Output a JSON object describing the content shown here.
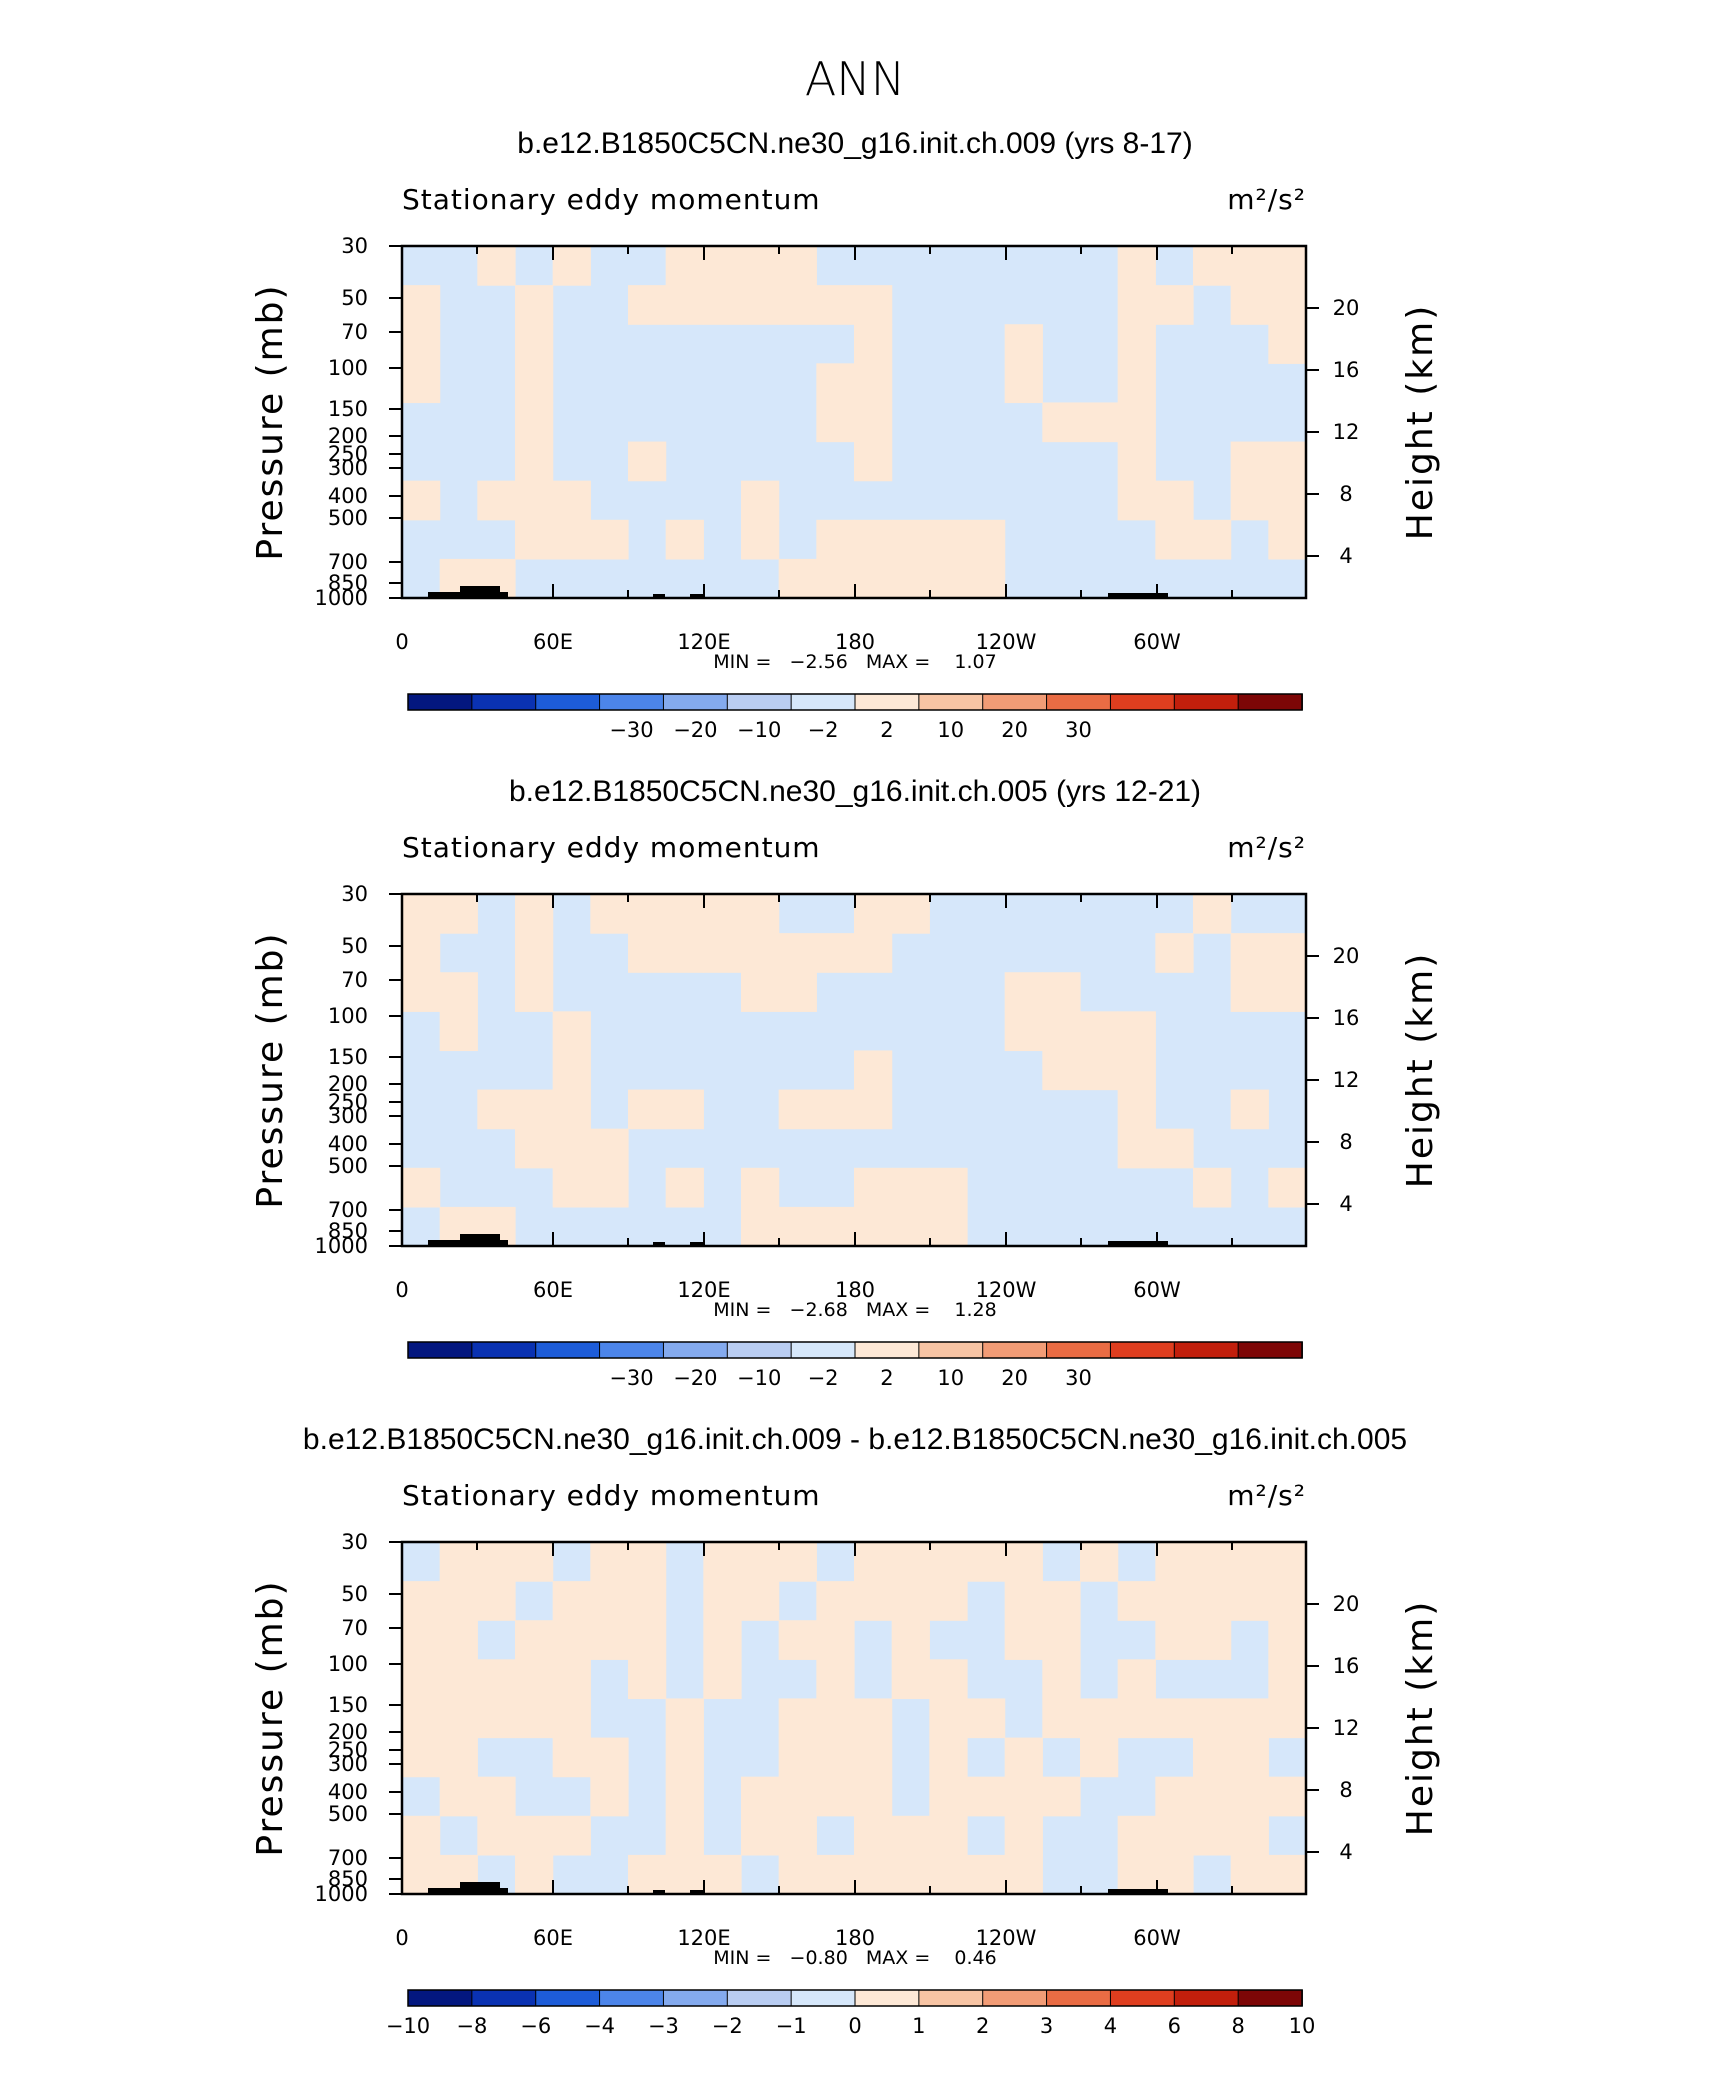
{
  "page_title": "ANN",
  "chart_data": [
    {
      "type": "heatmap",
      "title": "b.e12.B1850C5CN.ne30_g16.init.ch.009 (yrs 8-17)",
      "subtitle": "Stationary eddy momentum",
      "units": "m²/s²",
      "ylabel": "Pressure (mb)",
      "ylabel_right": "Height (km)",
      "x_ticks": [
        "0",
        "60E",
        "120E",
        "180",
        "120W",
        "60W"
      ],
      "y_ticks": [
        "30",
        "50",
        "70",
        "100",
        "150",
        "200",
        "250",
        "300",
        "400",
        "500",
        "700",
        "850",
        "1000"
      ],
      "y_ticks_right": [
        "20",
        "16",
        "12",
        "8",
        "4"
      ],
      "min_max_label": "MIN =   −2.56   MAX =    1.07",
      "min": -2.56,
      "max": 1.07,
      "colorbar_labels": [
        "−30",
        "−20",
        "−10",
        "−2",
        "2",
        "10",
        "20",
        "30"
      ],
      "colorbar_colors": [
        "#03177f",
        "#0a32b2",
        "#1d5cd8",
        "#4c85ea",
        "#84aaee",
        "#b9cdf2",
        "#d6e7fa",
        "#fde8d6",
        "#f7c4a4",
        "#f29c76",
        "#ea6c44",
        "#df3e1f",
        "#c21f0c",
        "#7d0606"
      ],
      "values": [
        [
          0,
          0,
          1,
          0,
          1,
          0,
          0,
          1,
          1,
          1,
          1,
          0,
          0,
          0,
          0,
          0,
          0,
          0,
          0,
          1,
          0,
          1,
          1,
          1
        ],
        [
          1,
          0,
          0,
          1,
          0,
          0,
          1,
          1,
          1,
          1,
          1,
          1,
          1,
          0,
          0,
          0,
          0,
          0,
          0,
          1,
          1,
          0,
          1,
          1
        ],
        [
          1,
          0,
          0,
          1,
          0,
          0,
          0,
          0,
          0,
          0,
          0,
          0,
          1,
          0,
          0,
          0,
          1,
          0,
          0,
          1,
          0,
          0,
          0,
          1
        ],
        [
          1,
          0,
          0,
          1,
          0,
          0,
          0,
          0,
          0,
          0,
          0,
          1,
          1,
          0,
          0,
          0,
          1,
          0,
          0,
          1,
          0,
          0,
          0,
          0
        ],
        [
          0,
          0,
          0,
          1,
          0,
          0,
          0,
          0,
          0,
          0,
          0,
          1,
          1,
          0,
          0,
          0,
          0,
          1,
          1,
          1,
          0,
          0,
          0,
          0
        ],
        [
          0,
          0,
          0,
          1,
          0,
          0,
          1,
          0,
          0,
          0,
          0,
          0,
          1,
          0,
          0,
          0,
          0,
          0,
          0,
          1,
          0,
          0,
          1,
          1
        ],
        [
          1,
          0,
          1,
          1,
          1,
          0,
          0,
          0,
          0,
          1,
          0,
          0,
          0,
          0,
          0,
          0,
          0,
          0,
          0,
          1,
          1,
          0,
          1,
          1
        ],
        [
          0,
          0,
          0,
          1,
          1,
          1,
          0,
          1,
          0,
          1,
          0,
          1,
          1,
          1,
          1,
          1,
          0,
          0,
          0,
          0,
          1,
          1,
          0,
          1
        ],
        [
          0,
          1,
          1,
          0,
          0,
          0,
          0,
          0,
          0,
          0,
          1,
          1,
          1,
          1,
          1,
          1,
          0,
          0,
          0,
          0,
          0,
          0,
          0,
          0
        ]
      ]
    },
    {
      "type": "heatmap",
      "title": "b.e12.B1850C5CN.ne30_g16.init.ch.005 (yrs 12-21)",
      "subtitle": "Stationary eddy momentum",
      "units": "m²/s²",
      "ylabel": "Pressure (mb)",
      "ylabel_right": "Height (km)",
      "x_ticks": [
        "0",
        "60E",
        "120E",
        "180",
        "120W",
        "60W"
      ],
      "y_ticks": [
        "30",
        "50",
        "70",
        "100",
        "150",
        "200",
        "250",
        "300",
        "400",
        "500",
        "700",
        "850",
        "1000"
      ],
      "y_ticks_right": [
        "20",
        "16",
        "12",
        "8",
        "4"
      ],
      "min_max_label": "MIN =   −2.68   MAX =    1.28",
      "min": -2.68,
      "max": 1.28,
      "colorbar_labels": [
        "−30",
        "−20",
        "−10",
        "−2",
        "2",
        "10",
        "20",
        "30"
      ],
      "colorbar_colors": [
        "#03177f",
        "#0a32b2",
        "#1d5cd8",
        "#4c85ea",
        "#84aaee",
        "#b9cdf2",
        "#d6e7fa",
        "#fde8d6",
        "#f7c4a4",
        "#f29c76",
        "#ea6c44",
        "#df3e1f",
        "#c21f0c",
        "#7d0606"
      ],
      "values": [
        [
          1,
          1,
          0,
          1,
          0,
          1,
          1,
          1,
          1,
          1,
          0,
          0,
          1,
          1,
          0,
          0,
          0,
          0,
          0,
          0,
          0,
          1,
          0,
          0
        ],
        [
          1,
          0,
          0,
          1,
          0,
          0,
          1,
          1,
          1,
          1,
          1,
          1,
          1,
          0,
          0,
          0,
          0,
          0,
          0,
          0,
          1,
          0,
          1,
          1
        ],
        [
          1,
          1,
          0,
          1,
          0,
          0,
          0,
          0,
          0,
          1,
          1,
          0,
          0,
          0,
          0,
          0,
          1,
          1,
          0,
          0,
          0,
          0,
          1,
          1
        ],
        [
          0,
          1,
          0,
          0,
          1,
          0,
          0,
          0,
          0,
          0,
          0,
          0,
          0,
          0,
          0,
          0,
          1,
          1,
          1,
          1,
          0,
          0,
          0,
          0
        ],
        [
          0,
          0,
          0,
          0,
          1,
          0,
          0,
          0,
          0,
          0,
          0,
          0,
          1,
          0,
          0,
          0,
          0,
          1,
          1,
          1,
          0,
          0,
          0,
          0
        ],
        [
          0,
          0,
          1,
          1,
          1,
          0,
          1,
          1,
          0,
          0,
          1,
          1,
          1,
          0,
          0,
          0,
          0,
          0,
          0,
          1,
          0,
          0,
          1,
          0
        ],
        [
          0,
          0,
          0,
          1,
          1,
          1,
          0,
          0,
          0,
          0,
          0,
          0,
          0,
          0,
          0,
          0,
          0,
          0,
          0,
          1,
          1,
          0,
          0,
          0
        ],
        [
          1,
          0,
          0,
          0,
          1,
          1,
          0,
          1,
          0,
          1,
          0,
          0,
          1,
          1,
          1,
          0,
          0,
          0,
          0,
          0,
          0,
          1,
          0,
          1
        ],
        [
          0,
          1,
          1,
          0,
          0,
          0,
          0,
          0,
          0,
          1,
          1,
          1,
          1,
          1,
          1,
          0,
          0,
          0,
          0,
          0,
          0,
          0,
          0,
          0
        ]
      ]
    },
    {
      "type": "heatmap",
      "title": "b.e12.B1850C5CN.ne30_g16.init.ch.009 - b.e12.B1850C5CN.ne30_g16.init.ch.005",
      "subtitle": "Stationary eddy momentum",
      "units": "m²/s²",
      "ylabel": "Pressure (mb)",
      "ylabel_right": "Height (km)",
      "x_ticks": [
        "0",
        "60E",
        "120E",
        "180",
        "120W",
        "60W"
      ],
      "y_ticks": [
        "30",
        "50",
        "70",
        "100",
        "150",
        "200",
        "250",
        "300",
        "400",
        "500",
        "700",
        "850",
        "1000"
      ],
      "y_ticks_right": [
        "20",
        "16",
        "12",
        "8",
        "4"
      ],
      "min_max_label": "MIN =   −0.80   MAX =    0.46",
      "min": -0.8,
      "max": 0.46,
      "colorbar_labels": [
        "−10",
        "−8",
        "−6",
        "−4",
        "−3",
        "−2",
        "−1",
        "0",
        "1",
        "2",
        "3",
        "4",
        "6",
        "8",
        "10"
      ],
      "colorbar_colors": [
        "#03177f",
        "#0a32b2",
        "#1d5cd8",
        "#4c85ea",
        "#84aaee",
        "#b9cdf2",
        "#d6e7fa",
        "#fde8d6",
        "#f7c4a4",
        "#f29c76",
        "#ea6c44",
        "#df3e1f",
        "#c21f0c",
        "#7d0606"
      ],
      "values": [
        [
          0,
          1,
          1,
          1,
          0,
          1,
          1,
          0,
          1,
          1,
          1,
          0,
          1,
          1,
          1,
          1,
          1,
          0,
          1,
          0,
          1,
          1,
          1,
          1
        ],
        [
          1,
          1,
          1,
          0,
          1,
          1,
          1,
          0,
          1,
          1,
          0,
          1,
          1,
          1,
          1,
          0,
          1,
          1,
          0,
          1,
          1,
          1,
          1,
          1
        ],
        [
          1,
          1,
          0,
          1,
          1,
          1,
          1,
          0,
          1,
          0,
          1,
          1,
          0,
          1,
          0,
          0,
          1,
          1,
          0,
          0,
          1,
          1,
          0,
          1
        ],
        [
          1,
          1,
          1,
          1,
          1,
          0,
          1,
          0,
          1,
          0,
          0,
          1,
          0,
          1,
          1,
          0,
          0,
          1,
          0,
          1,
          0,
          0,
          0,
          1
        ],
        [
          1,
          1,
          1,
          1,
          1,
          0,
          0,
          1,
          0,
          0,
          1,
          1,
          1,
          0,
          1,
          1,
          0,
          1,
          1,
          1,
          1,
          1,
          1,
          1
        ],
        [
          1,
          1,
          0,
          0,
          1,
          1,
          0,
          1,
          0,
          0,
          1,
          1,
          1,
          0,
          1,
          0,
          1,
          0,
          1,
          0,
          0,
          1,
          1,
          0
        ],
        [
          0,
          1,
          1,
          0,
          0,
          1,
          0,
          1,
          0,
          1,
          1,
          1,
          1,
          0,
          1,
          1,
          1,
          1,
          0,
          0,
          1,
          1,
          1,
          1
        ],
        [
          1,
          0,
          1,
          1,
          1,
          0,
          0,
          1,
          0,
          1,
          1,
          0,
          1,
          1,
          1,
          0,
          1,
          0,
          0,
          1,
          1,
          1,
          1,
          0
        ],
        [
          1,
          1,
          0,
          1,
          0,
          0,
          1,
          1,
          1,
          0,
          1,
          1,
          1,
          1,
          1,
          1,
          1,
          0,
          0,
          1,
          1,
          0,
          1,
          1
        ]
      ]
    }
  ]
}
